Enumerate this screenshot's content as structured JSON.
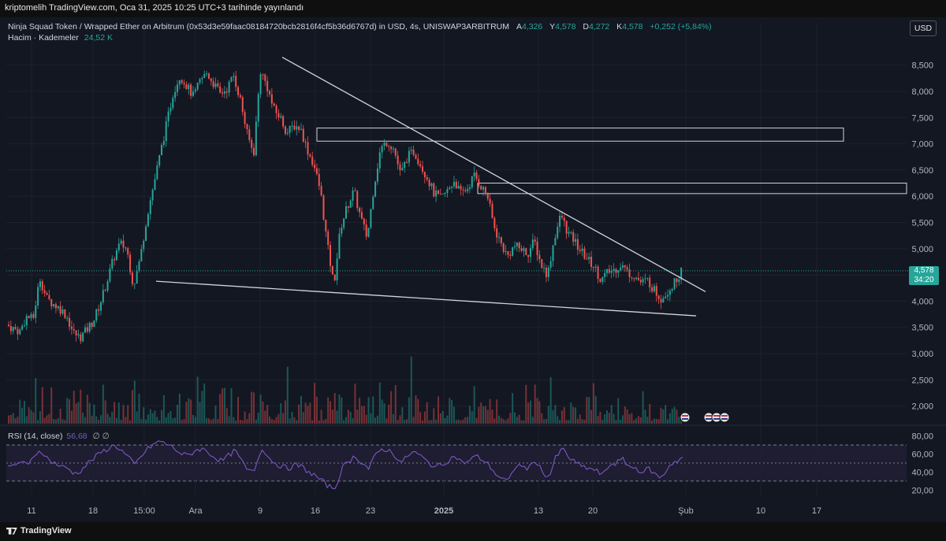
{
  "publish_note": "kriptomelih TradingView.com, Oca 31, 2025 10:25 UTC+3 tarihinde yayınlandı",
  "legend": {
    "symbol": "Ninja Squad Token / Wrapped Ether on Arbitrum (0x53d3e59faac08184720bcb2816f4cf5b36d6767d) in USD, 4s, UNISWAP3ARBITRUM",
    "open_label": "A",
    "open": "4,326",
    "high_label": "Y",
    "high": "4,578",
    "low_label": "D",
    "low": "4,272",
    "close_label": "K",
    "close": "4,578",
    "change": "+0,252 (+5,84%)",
    "volume_label": "Hacim · Kademeler",
    "volume_value": "24,52 K"
  },
  "currency_button": "USD",
  "rsi_legend": {
    "label": "RSI (14, close)",
    "value": "56,68",
    "extra": "∅ ∅"
  },
  "price_badge": {
    "price": "4,578",
    "countdown": "34:20"
  },
  "branding": "TradingView",
  "colors": {
    "up": "#26a69a",
    "down": "#ef5350",
    "rsi": "#7e57c2",
    "trendline": "#d1d4dc",
    "background": "#131722"
  },
  "chart_data": [
    {
      "type": "candlestick",
      "title": "",
      "y_axis": {
        "ticks": [
          "8,500",
          "8,000",
          "7,500",
          "7,000",
          "6,500",
          "6,000",
          "5,500",
          "5,000",
          "4,500",
          "4,000",
          "3,500",
          "3,000",
          "2,500",
          "2,000"
        ],
        "ylim": [
          1800,
          8750
        ]
      },
      "x_axis": {
        "ticks": [
          "11",
          "18",
          "15:00",
          "Ara",
          "9",
          "16",
          "23",
          "2025",
          "13",
          "20",
          "Şub",
          "10",
          "17"
        ],
        "bold_ticks": [
          "2025"
        ]
      },
      "current_price": 4.578,
      "close_series": [
        3.55,
        3.48,
        3.42,
        3.7,
        3.66,
        4.45,
        4.05,
        3.95,
        3.86,
        3.72,
        3.4,
        3.3,
        3.45,
        3.62,
        3.95,
        4.35,
        4.8,
        5.1,
        5.0,
        4.3,
        4.8,
        5.6,
        6.2,
        6.8,
        7.4,
        8.0,
        8.3,
        8.1,
        7.9,
        8.2,
        8.35,
        8.15,
        7.95,
        8.05,
        8.3,
        7.85,
        7.2,
        6.8,
        8.4,
        8.1,
        7.65,
        7.5,
        7.2,
        7.35,
        7.3,
        6.9,
        6.6,
        6.1,
        5.1,
        4.3,
        5.4,
        5.8,
        6.1,
        5.6,
        5.2,
        6.2,
        6.9,
        7.05,
        6.9,
        6.4,
        6.75,
        6.85,
        6.6,
        6.35,
        6.05,
        5.95,
        6.1,
        6.3,
        6.05,
        6.15,
        6.4,
        6.2,
        6.0,
        5.4,
        5.1,
        4.85,
        5.05,
        5.0,
        4.9,
        5.15,
        4.7,
        4.5,
        5.2,
        5.65,
        5.3,
        5.15,
        4.95,
        4.8,
        4.65,
        4.4,
        4.55,
        4.6,
        4.7,
        4.55,
        4.48,
        4.35,
        4.4,
        4.2,
        4.05,
        4.2,
        4.35,
        4.578
      ],
      "horizontal_zones": [
        [
          7.05,
          7.3
        ],
        [
          6.05,
          6.25
        ]
      ],
      "trendlines": [
        {
          "name": "",
          "from": [
            8.65,
            "9"
          ],
          "to": [
            4.25,
            "Şub"
          ]
        },
        {
          "name": "",
          "from": [
            4.38,
            "15:00"
          ],
          "to": [
            3.72,
            "Şub"
          ]
        }
      ]
    },
    {
      "type": "line",
      "title": "RSI (14, close)",
      "y_axis": {
        "ticks": [
          "80,00",
          "60,00",
          "40,00",
          "20,00"
        ],
        "ylim": [
          15,
          85
        ],
        "bands": [
          30,
          50,
          70
        ]
      },
      "values": [
        44,
        48,
        52,
        46,
        60,
        64,
        54,
        50,
        46,
        44,
        38,
        42,
        50,
        56,
        62,
        66,
        70,
        64,
        56,
        48,
        58,
        66,
        72,
        74,
        70,
        66,
        60,
        58,
        64,
        66,
        62,
        56,
        52,
        58,
        64,
        52,
        40,
        44,
        68,
        56,
        50,
        46,
        44,
        48,
        46,
        40,
        36,
        30,
        24,
        22,
        44,
        52,
        58,
        50,
        44,
        58,
        66,
        64,
        58,
        50,
        60,
        62,
        56,
        50,
        46,
        48,
        54,
        58,
        50,
        52,
        58,
        54,
        48,
        38,
        32,
        30,
        48,
        46,
        44,
        54,
        40,
        34,
        56,
        66,
        56,
        50,
        46,
        44,
        42,
        36,
        48,
        50,
        54,
        46,
        44,
        40,
        44,
        36,
        34,
        48,
        52,
        56
      ]
    }
  ]
}
